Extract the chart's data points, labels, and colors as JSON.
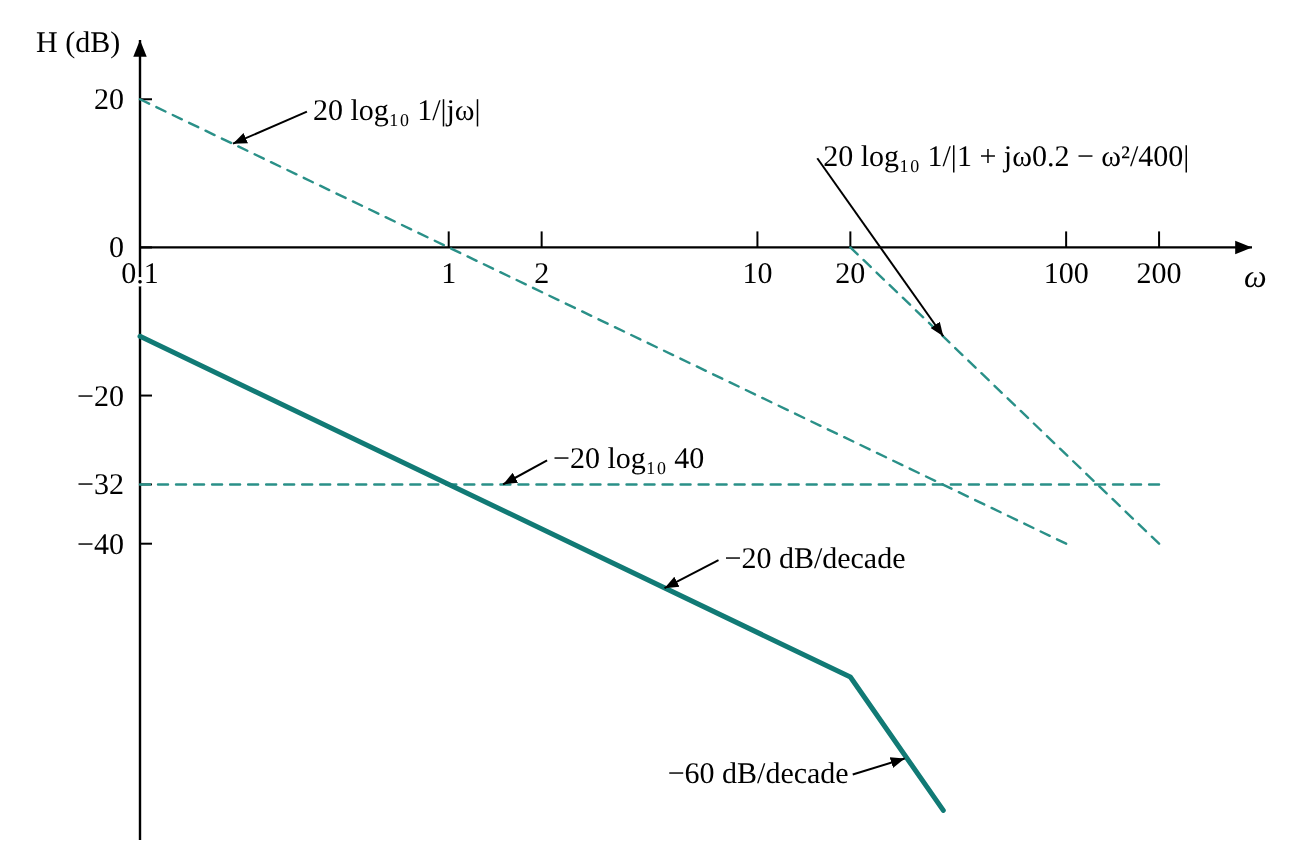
{
  "chart_data": {
    "type": "line",
    "xlabel": "ω",
    "ylabel": "H (dB)",
    "log": "x",
    "xlim": [
      0.1,
      400
    ],
    "ylim": [
      -80,
      28
    ],
    "xticks": [
      0.1,
      1,
      2,
      10,
      20,
      100,
      200
    ],
    "yticks": [
      20,
      0,
      -20,
      -32,
      -40
    ],
    "series": [
      {
        "x": [
          0.1,
          100
        ],
        "values": [
          20,
          -40
        ],
        "color": "#2a9088",
        "line_style": "dashed"
      },
      {
        "x": [
          20,
          200
        ],
        "values": [
          0,
          -40
        ],
        "color": "#2a9088",
        "line_style": "dashed"
      },
      {
        "x": [
          0.1,
          200
        ],
        "values": [
          -32,
          -32
        ],
        "color": "#2a9088",
        "line_style": "dashed"
      },
      {
        "x": [
          0.1,
          20,
          40
        ],
        "values": [
          -12,
          -58,
          -76
        ],
        "color": "#117a75",
        "line_style": "solid"
      }
    ],
    "annotations": [
      {
        "text": "20 log₁₀ 1/|jω|",
        "x": 0.2,
        "y": 14
      },
      {
        "text": "20 log₁₀ 1/|1 + jω0.2 − ω²/400|",
        "x": 40,
        "y": -12
      },
      {
        "text": "−20 log₁₀ 40",
        "x": 1.5,
        "y": -32
      },
      {
        "text": "−20 dB/decade",
        "x": 5,
        "y": -46
      },
      {
        "text": "−60 dB/decade",
        "x": 30,
        "y": -69
      }
    ]
  }
}
